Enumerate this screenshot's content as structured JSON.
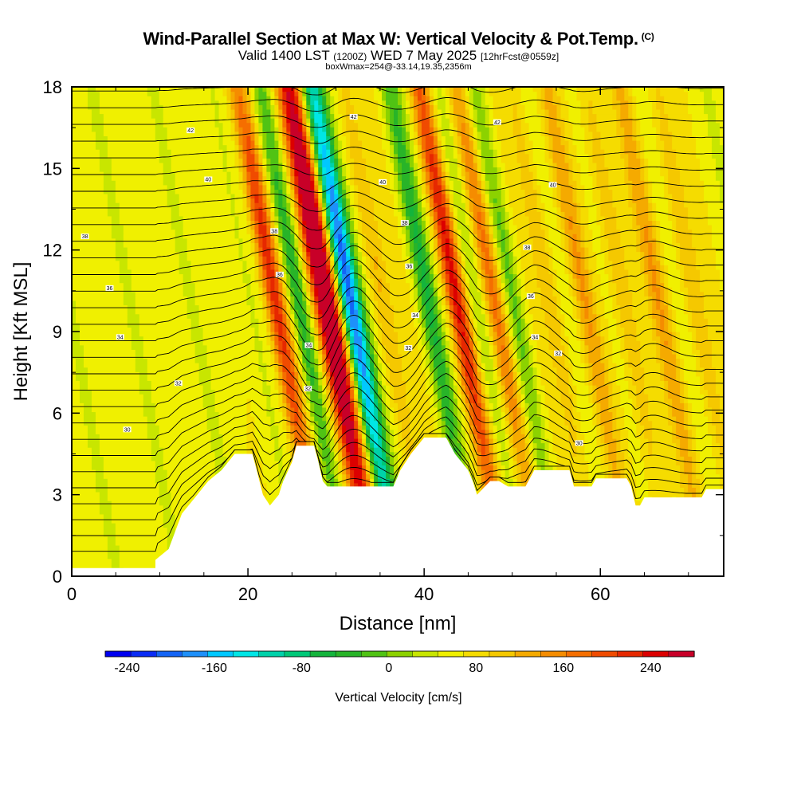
{
  "header": {
    "title": "Wind-Parallel Section at Max W: Vertical Velocity & Pot.Temp.",
    "copyright": "(C)",
    "valid_prefix": "Valid 1400 LST",
    "valid_zulu": "(1200Z)",
    "valid_date": "WED 7 May 2025",
    "forecast": "[12hrFcst@0559z]",
    "box_info": "boxWmax=254@-33.14,19.35,2356m"
  },
  "chart_data": {
    "type": "heatmap",
    "title": "Wind-Parallel Section at Max W: Vertical Velocity & Pot.Temp.",
    "xlabel": "Distance [nm]",
    "ylabel": "Height [Kft MSL]",
    "xlim": [
      0,
      74
    ],
    "ylim": [
      0,
      18
    ],
    "x_ticks": [
      0,
      20,
      40,
      60
    ],
    "x_tick_labels": [
      "0",
      "20",
      "40",
      "60"
    ],
    "y_ticks": [
      0,
      3,
      6,
      9,
      12,
      15,
      18
    ],
    "y_tick_labels": [
      "0",
      "3",
      "6",
      "9",
      "12",
      "15",
      "18"
    ],
    "colorbar": {
      "label": "Vertical Velocity [cm/s]",
      "min": -260,
      "max": 280,
      "step": 20,
      "tick_values": [
        -240,
        -160,
        -80,
        0,
        80,
        160,
        240
      ],
      "tick_labels": [
        "-240",
        "-160",
        "-80",
        "0",
        "80",
        "160",
        "240"
      ],
      "colors": [
        "#0000f0",
        "#0a2cf5",
        "#1464f5",
        "#1e90fa",
        "#00c8ff",
        "#00e6e6",
        "#00d2aa",
        "#00c878",
        "#14b43c",
        "#28b428",
        "#50c314",
        "#8cd200",
        "#c8e600",
        "#f0f000",
        "#f5dc00",
        "#f5c800",
        "#f5aa00",
        "#f58c00",
        "#f56e00",
        "#f04b00",
        "#e62800",
        "#dc0000",
        "#c80028"
      ]
    },
    "updrafts": [
      {
        "x": 23.7,
        "peak": 130
      },
      {
        "x": 29.5,
        "peak": 254
      },
      {
        "x": 35.8,
        "peak": 60
      },
      {
        "x": 44.3,
        "peak": 150
      },
      {
        "x": 48.6,
        "peak": 110
      },
      {
        "x": 55.0,
        "peak": 50
      },
      {
        "x": 58.8,
        "peak": 60
      },
      {
        "x": 63.3,
        "peak": 60
      },
      {
        "x": 67.3,
        "peak": 60
      },
      {
        "x": 71.2,
        "peak": 50
      }
    ],
    "downdrafts": [
      {
        "x": 26.3,
        "peak": -90
      },
      {
        "x": 32.2,
        "peak": -240
      },
      {
        "x": 41.0,
        "peak": -90
      },
      {
        "x": 46.5,
        "peak": -50
      },
      {
        "x": 50.8,
        "peak": -60
      }
    ],
    "terrain": [
      [
        0,
        0.3
      ],
      [
        9.5,
        0.3
      ],
      [
        9.5,
        0.6
      ],
      [
        11,
        1.0
      ],
      [
        12.5,
        2.3
      ],
      [
        14,
        2.9
      ],
      [
        15.5,
        3.5
      ],
      [
        17,
        3.9
      ],
      [
        18.5,
        4.5
      ],
      [
        20.5,
        4.5
      ],
      [
        21,
        3.9
      ],
      [
        21.7,
        3.0
      ],
      [
        22.5,
        2.6
      ],
      [
        23.5,
        3.0
      ],
      [
        24,
        3.5
      ],
      [
        25,
        4.2
      ],
      [
        25.5,
        4.8
      ],
      [
        27.5,
        4.8
      ],
      [
        28,
        4.2
      ],
      [
        28.5,
        3.5
      ],
      [
        29,
        3.3
      ],
      [
        36.5,
        3.3
      ],
      [
        37.3,
        3.9
      ],
      [
        38.5,
        4.5
      ],
      [
        40,
        5.1
      ],
      [
        42.5,
        5.1
      ],
      [
        43.5,
        4.5
      ],
      [
        45,
        3.9
      ],
      [
        45.5,
        3.5
      ],
      [
        46,
        3.0
      ],
      [
        47.5,
        3.5
      ],
      [
        48.5,
        3.5
      ],
      [
        49.5,
        3.3
      ],
      [
        51.5,
        3.3
      ],
      [
        52.5,
        3.9
      ],
      [
        56.5,
        3.9
      ],
      [
        57,
        3.3
      ],
      [
        59,
        3.3
      ],
      [
        59.5,
        3.6
      ],
      [
        63,
        3.6
      ],
      [
        63.5,
        3.3
      ],
      [
        64,
        2.6
      ],
      [
        64.5,
        2.6
      ],
      [
        65,
        2.9
      ],
      [
        71.5,
        2.9
      ],
      [
        72,
        3.2
      ],
      [
        74,
        3.2
      ]
    ],
    "isentropes": {
      "count": 30,
      "labels": [
        {
          "text": "42",
          "x": 13.5,
          "y": 16.4
        },
        {
          "text": "40",
          "x": 15.5,
          "y": 14.6
        },
        {
          "text": "38",
          "x": 1.5,
          "y": 12.5
        },
        {
          "text": "36",
          "x": 4.3,
          "y": 10.6
        },
        {
          "text": "34",
          "x": 5.5,
          "y": 8.8
        },
        {
          "text": "32",
          "x": 12.1,
          "y": 7.1
        },
        {
          "text": "30",
          "x": 6.3,
          "y": 5.4
        },
        {
          "text": "42",
          "x": 32.0,
          "y": 16.9
        },
        {
          "text": "40",
          "x": 35.3,
          "y": 14.5
        },
        {
          "text": "38",
          "x": 37.8,
          "y": 13.0
        },
        {
          "text": "36",
          "x": 38.3,
          "y": 11.4
        },
        {
          "text": "34",
          "x": 39.0,
          "y": 9.6
        },
        {
          "text": "32",
          "x": 38.2,
          "y": 8.4
        },
        {
          "text": "38",
          "x": 23.0,
          "y": 12.7
        },
        {
          "text": "36",
          "x": 23.6,
          "y": 11.1
        },
        {
          "text": "34",
          "x": 26.9,
          "y": 8.5
        },
        {
          "text": "32",
          "x": 26.8,
          "y": 6.9
        },
        {
          "text": "42",
          "x": 48.3,
          "y": 16.7
        },
        {
          "text": "40",
          "x": 54.6,
          "y": 14.4
        },
        {
          "text": "38",
          "x": 51.7,
          "y": 12.1
        },
        {
          "text": "36",
          "x": 52.1,
          "y": 10.3
        },
        {
          "text": "34",
          "x": 52.6,
          "y": 8.8
        },
        {
          "text": "32",
          "x": 55.2,
          "y": 8.2
        },
        {
          "text": "30",
          "x": 57.6,
          "y": 4.9
        }
      ]
    }
  }
}
